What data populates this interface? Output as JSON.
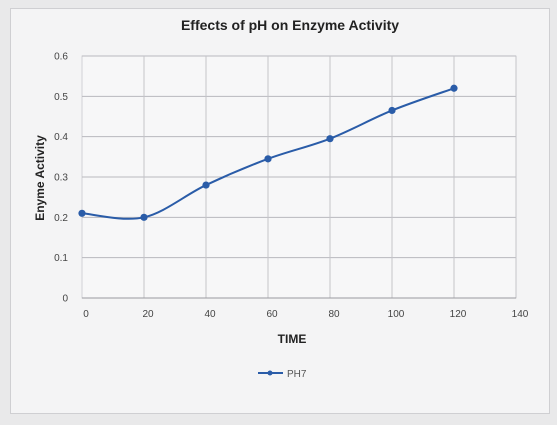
{
  "chart_data": {
    "type": "line",
    "title": "Effects of pH on Enzyme Activity",
    "xlabel": "TIME",
    "ylabel": "Enyme Activity",
    "xlim": [
      0,
      140
    ],
    "ylim": [
      0,
      0.6
    ],
    "x_ticks": [
      "0",
      "20",
      "40",
      "60",
      "80",
      "100",
      "120",
      "140"
    ],
    "y_ticks": [
      "0",
      "0.1",
      "0.2",
      "0.3",
      "0.4",
      "0.5",
      "0.6"
    ],
    "grid": true,
    "legend_position": "bottom",
    "series": [
      {
        "name": "PH7",
        "color": "#2a5ca8",
        "x": [
          0,
          20,
          40,
          60,
          80,
          100,
          120
        ],
        "y": [
          0.21,
          0.2,
          0.28,
          0.345,
          0.395,
          0.465,
          0.52
        ]
      }
    ]
  }
}
